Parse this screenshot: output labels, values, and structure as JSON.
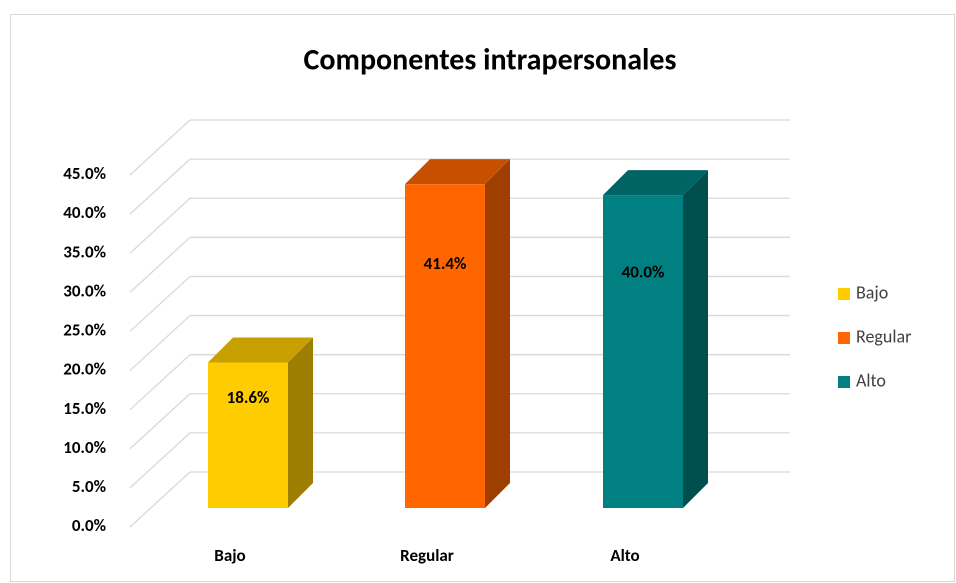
{
  "chart_data": {
    "type": "bar3d",
    "title": "Componentes intrapersonales",
    "categories": [
      "Bajo",
      "Regular",
      "Alto"
    ],
    "values": [
      18.6,
      41.4,
      40.0
    ],
    "value_labels": [
      "18.6%",
      "41.4%",
      "40.0%"
    ],
    "colors": [
      "#ffcc00",
      "#ff6600",
      "#008080"
    ],
    "ylim": [
      0,
      45
    ],
    "yticks": [
      {
        "value": 0,
        "label": "0.0%"
      },
      {
        "value": 5,
        "label": "5.0%"
      },
      {
        "value": 10,
        "label": "10.0%"
      },
      {
        "value": 15,
        "label": "15.0%"
      },
      {
        "value": 20,
        "label": "20.0%"
      },
      {
        "value": 25,
        "label": "25.0%"
      },
      {
        "value": 30,
        "label": "30.0%"
      },
      {
        "value": 35,
        "label": "35.0%"
      },
      {
        "value": 40,
        "label": "40.0%"
      },
      {
        "value": 45,
        "label": "45.0%"
      }
    ],
    "grid": true,
    "legend": "right"
  }
}
